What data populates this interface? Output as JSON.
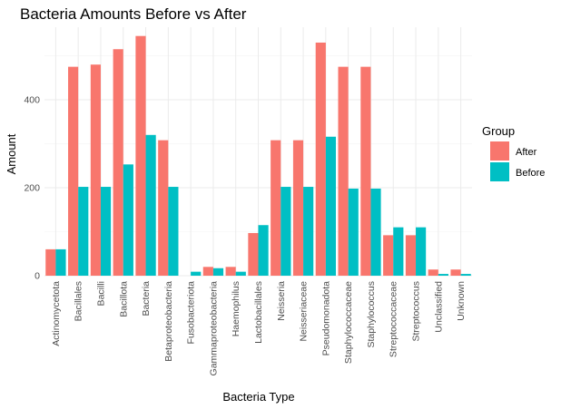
{
  "chart_data": {
    "type": "bar",
    "title": "Bacteria Amounts Before vs After",
    "xlabel": "Bacteria Type",
    "ylabel": "Amount",
    "ylim": [
      0,
      565
    ],
    "yticks": [
      0,
      200,
      400
    ],
    "grid": true,
    "legend": {
      "title": "Group",
      "placement": "right"
    },
    "categories": [
      "Actinomycetota",
      "Bacillales",
      "Bacilli",
      "Bacillota",
      "Bacteria",
      "Betaproteobacteria",
      "Fusobacteriota",
      "Gammaproteobacteria",
      "Haemophilus",
      "Lactobacillales",
      "Neisseria",
      "Neisseriaceae",
      "Pseudomonadota",
      "Staphylococcaceae",
      "Staphylococcus",
      "Streptococcaceae",
      "Streptococcus",
      "Unclassified",
      "Unknown"
    ],
    "series": [
      {
        "name": "After",
        "color": "#F8766D",
        "values": [
          60,
          475,
          480,
          515,
          545,
          308,
          0,
          20,
          20,
          97,
          308,
          308,
          530,
          475,
          475,
          92,
          92,
          14,
          14
        ]
      },
      {
        "name": "Before",
        "color": "#00BFC4",
        "values": [
          60,
          202,
          202,
          253,
          320,
          202,
          9,
          17,
          9,
          115,
          202,
          202,
          316,
          198,
          198,
          110,
          110,
          4,
          4
        ]
      }
    ]
  }
}
